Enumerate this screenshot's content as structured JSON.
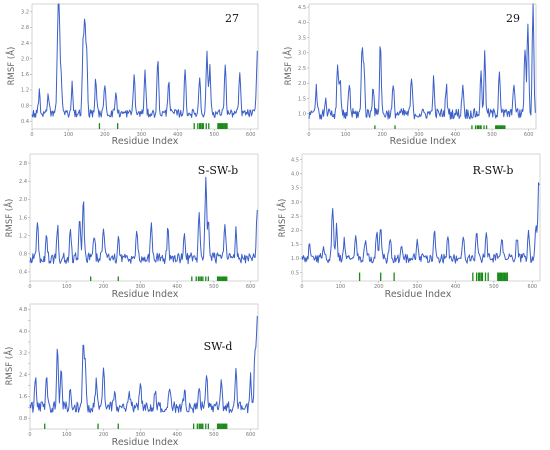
{
  "chart_data": [
    {
      "type": "line",
      "title": "27",
      "xlabel": "Residue Index",
      "ylabel": "RMSF (Å)",
      "xlim": [
        0,
        620
      ],
      "ylim": [
        0.2,
        3.4
      ],
      "x_ticks": [
        0,
        100,
        200,
        300,
        400,
        500,
        600
      ],
      "y_ticks": [
        0.4,
        0.8,
        1.2,
        1.6,
        2.0,
        2.4,
        2.8,
        3.2
      ],
      "y_tick_labels": [
        "0.4",
        "0.8",
        "1.2",
        "1.6",
        "2.0",
        "2.4",
        "2.8",
        "3.2"
      ],
      "baseline": 0.6,
      "peaks": [
        [
          20,
          0.55
        ],
        [
          45,
          0.45
        ],
        [
          70,
          1.4
        ],
        [
          74,
          2.95
        ],
        [
          80,
          1.0
        ],
        [
          110,
          0.75
        ],
        [
          140,
          1.65
        ],
        [
          145,
          2.15
        ],
        [
          150,
          1.45
        ],
        [
          175,
          0.9
        ],
        [
          200,
          0.8
        ],
        [
          230,
          0.55
        ],
        [
          280,
          1.0
        ],
        [
          310,
          1.05
        ],
        [
          345,
          1.4
        ],
        [
          375,
          0.9
        ],
        [
          420,
          1.1
        ],
        [
          460,
          0.95
        ],
        [
          480,
          1.6
        ],
        [
          488,
          1.2
        ],
        [
          530,
          1.3
        ],
        [
          570,
          1.05
        ],
        [
          618,
          1.55
        ]
      ],
      "contacts": [
        185,
        235,
        445,
        455,
        460,
        463,
        467,
        470,
        478,
        485,
        510,
        512,
        515,
        517,
        520,
        523,
        526,
        529,
        532,
        535
      ],
      "contact_bottom": 0.35
    },
    {
      "type": "line",
      "title": "29",
      "xlabel": "Residue Index",
      "ylabel": "RMSF (Å)",
      "xlim": [
        0,
        620
      ],
      "ylim": [
        0.5,
        4.6
      ],
      "x_ticks": [
        0,
        100,
        200,
        300,
        400,
        500,
        600
      ],
      "y_ticks": [
        1.0,
        1.5,
        2.0,
        2.5,
        3.0,
        3.5,
        4.0,
        4.5
      ],
      "y_tick_labels": [
        "1.0",
        "1.5",
        "2.0",
        "2.5",
        "3.0",
        "3.5",
        "4.0",
        "4.5"
      ],
      "baseline": 1.0,
      "peaks": [
        [
          20,
          0.8
        ],
        [
          45,
          0.5
        ],
        [
          78,
          1.6
        ],
        [
          85,
          1.2
        ],
        [
          110,
          1.0
        ],
        [
          145,
          2.1
        ],
        [
          150,
          1.5
        ],
        [
          175,
          1.0
        ],
        [
          195,
          2.35
        ],
        [
          230,
          0.9
        ],
        [
          280,
          1.2
        ],
        [
          340,
          1.1
        ],
        [
          375,
          0.9
        ],
        [
          420,
          1.0
        ],
        [
          470,
          1.3
        ],
        [
          480,
          1.9
        ],
        [
          520,
          1.5
        ],
        [
          560,
          1.1
        ],
        [
          590,
          2.2
        ],
        [
          598,
          3.0
        ],
        [
          612,
          3.6
        ]
      ],
      "contacts": [
        180,
        235,
        445,
        455,
        460,
        463,
        467,
        470,
        478,
        485,
        510,
        512,
        515,
        517,
        520,
        523,
        526,
        529,
        532,
        535
      ],
      "contact_bottom": 0.62
    },
    {
      "type": "line",
      "title": "S-SW-b",
      "xlabel": "Residue Index",
      "ylabel": "RMSF (Å)",
      "xlim": [
        0,
        620
      ],
      "ylim": [
        0.2,
        3.0
      ],
      "x_ticks": [
        0,
        100,
        200,
        300,
        400,
        500,
        600
      ],
      "y_ticks": [
        0.4,
        0.8,
        1.2,
        1.6,
        2.0,
        2.4,
        2.8
      ],
      "y_tick_labels": [
        "0.4",
        "0.8",
        "1.2",
        "1.6",
        "2.0",
        "2.4",
        "2.8"
      ],
      "baseline": 0.7,
      "peaks": [
        [
          20,
          0.9
        ],
        [
          45,
          0.5
        ],
        [
          75,
          0.7
        ],
        [
          110,
          0.6
        ],
        [
          135,
          0.9
        ],
        [
          145,
          1.4
        ],
        [
          175,
          0.6
        ],
        [
          200,
          0.7
        ],
        [
          240,
          0.5
        ],
        [
          290,
          0.6
        ],
        [
          330,
          0.8
        ],
        [
          375,
          0.6
        ],
        [
          420,
          0.6
        ],
        [
          460,
          1.0
        ],
        [
          478,
          1.7
        ],
        [
          485,
          0.9
        ],
        [
          530,
          0.7
        ],
        [
          560,
          0.6
        ],
        [
          618,
          1.0
        ]
      ],
      "contacts": [
        165,
        240,
        440,
        452,
        458,
        462,
        466,
        470,
        478,
        485,
        510,
        512,
        515,
        517,
        520,
        523,
        526,
        529,
        532,
        535
      ],
      "contact_bottom": 0.3
    },
    {
      "type": "line",
      "title": "R-SW-b",
      "xlabel": "Residue Index",
      "ylabel": "RMSF (Å)",
      "xlim": [
        0,
        620
      ],
      "ylim": [
        0.2,
        4.7
      ],
      "x_ticks": [
        0,
        100,
        200,
        300,
        400,
        500,
        600
      ],
      "y_ticks": [
        0.5,
        1.0,
        1.5,
        2.0,
        2.5,
        3.0,
        3.5,
        4.0,
        4.5
      ],
      "y_tick_labels": [
        "0.5",
        "1.0",
        "1.5",
        "2.0",
        "2.5",
        "3.0",
        "3.5",
        "4.0",
        "4.5"
      ],
      "baseline": 1.0,
      "peaks": [
        [
          20,
          0.6
        ],
        [
          55,
          0.4
        ],
        [
          80,
          1.8
        ],
        [
          90,
          1.1
        ],
        [
          110,
          0.7
        ],
        [
          140,
          0.9
        ],
        [
          165,
          0.6
        ],
        [
          195,
          1.0
        ],
        [
          205,
          1.3
        ],
        [
          230,
          0.7
        ],
        [
          260,
          0.6
        ],
        [
          300,
          0.6
        ],
        [
          345,
          0.9
        ],
        [
          380,
          0.7
        ],
        [
          420,
          0.7
        ],
        [
          455,
          0.8
        ],
        [
          480,
          0.9
        ],
        [
          520,
          0.8
        ],
        [
          560,
          0.7
        ],
        [
          590,
          0.9
        ],
        [
          610,
          1.2
        ],
        [
          617,
          2.8
        ]
      ],
      "contacts": [
        150,
        205,
        240,
        445,
        455,
        460,
        463,
        467,
        470,
        478,
        485,
        510,
        512,
        515,
        517,
        520,
        523,
        526,
        529,
        532,
        535
      ],
      "contact_bottom": 0.5
    },
    {
      "type": "line",
      "title": "SW-d",
      "xlabel": "Residue Index",
      "ylabel": "RMSF (Å)",
      "xlim": [
        0,
        620
      ],
      "ylim": [
        0.4,
        5.0
      ],
      "x_ticks": [
        0,
        100,
        200,
        300,
        400,
        500,
        600
      ],
      "y_ticks": [
        0.8,
        1.2,
        1.6,
        2.0,
        2.4,
        2.8,
        3.2,
        3.6,
        4.0,
        4.4,
        4.8
      ],
      "y_tick_labels": [
        "0.8",
        "",
        "1.6",
        "",
        "2.4",
        "",
        "3.2",
        "",
        "4.0",
        "",
        "4.8"
      ],
      "baseline": 1.2,
      "peaks": [
        [
          15,
          1.0
        ],
        [
          45,
          1.3
        ],
        [
          75,
          2.2
        ],
        [
          85,
          1.3
        ],
        [
          110,
          0.8
        ],
        [
          145,
          2.3
        ],
        [
          150,
          1.4
        ],
        [
          180,
          1.0
        ],
        [
          200,
          1.6
        ],
        [
          230,
          0.6
        ],
        [
          270,
          0.6
        ],
        [
          300,
          0.9
        ],
        [
          340,
          0.7
        ],
        [
          380,
          0.8
        ],
        [
          420,
          0.6
        ],
        [
          460,
          0.8
        ],
        [
          480,
          1.2
        ],
        [
          520,
          0.9
        ],
        [
          560,
          1.3
        ],
        [
          600,
          1.1
        ],
        [
          612,
          2.2
        ],
        [
          618,
          3.4
        ]
      ],
      "contacts": [
        40,
        185,
        240,
        445,
        455,
        460,
        463,
        467,
        470,
        478,
        485,
        510,
        512,
        515,
        517,
        520,
        523,
        526,
        529,
        532,
        535
      ],
      "contact_bottom": 0.6
    }
  ]
}
